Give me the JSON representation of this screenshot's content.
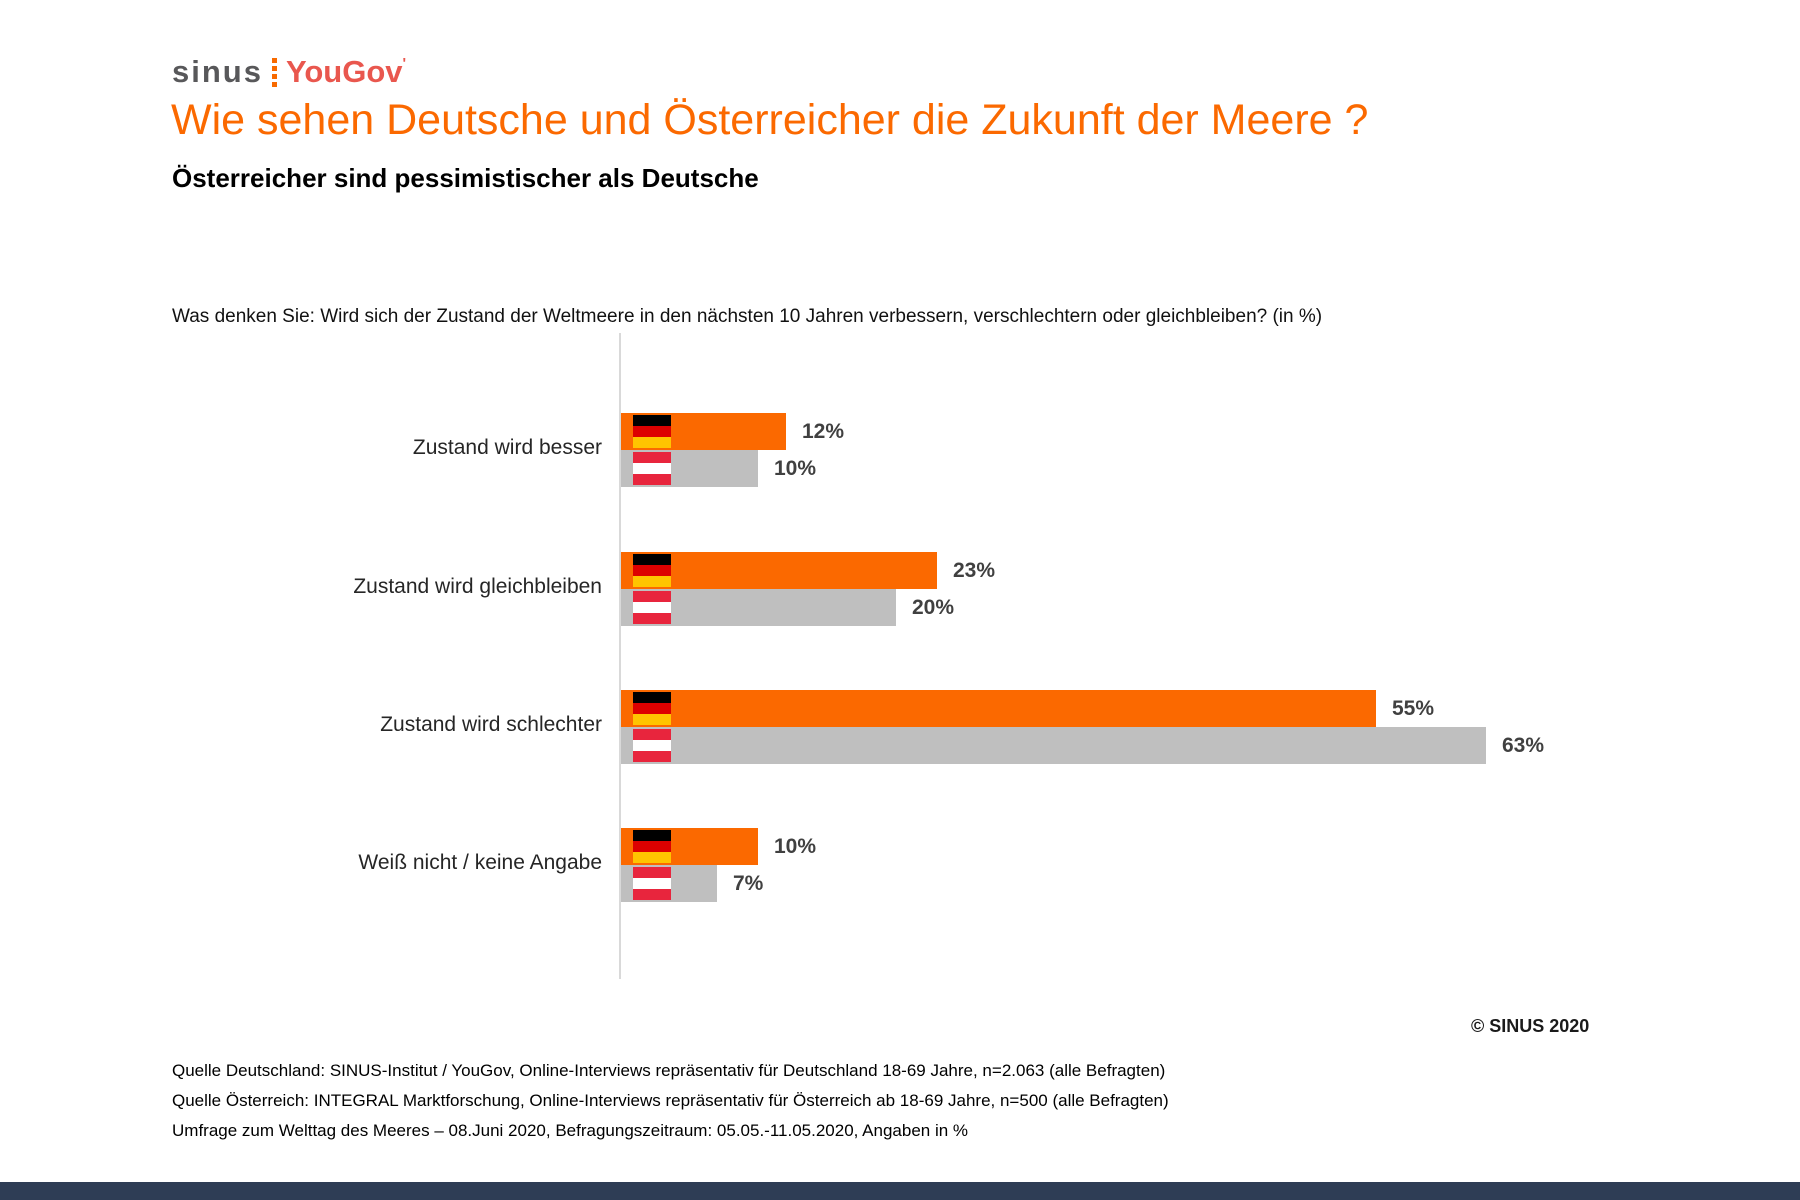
{
  "logo": {
    "sinus": "sinus",
    "yougov": "YouGov",
    "tick": "'"
  },
  "header": {
    "title": "Wie sehen Deutsche und Österreicher die Zukunft der Meere ?",
    "subtitle": "Österreicher sind pessimistischer als Deutsche"
  },
  "question": "Was denken Sie: Wird sich der Zustand der Weltmeere in den nächsten 10 Jahren verbessern, verschlechtern oder gleichbleiben? (in %)",
  "chart_data": {
    "type": "bar",
    "orientation": "horizontal",
    "title": "Wie sehen Deutsche und Österreicher die Zukunft der Meere ?",
    "categories": [
      "Zustand wird besser",
      "Zustand wird gleichbleiben",
      "Zustand wird schlechter",
      "Weiß nicht / keine Angabe"
    ],
    "series": [
      {
        "name": "Deutschland",
        "flag": "german-flag",
        "flag_colors": [
          "#000000",
          "#dd0000",
          "#ffc400"
        ],
        "color": "#fb6900",
        "values": [
          12,
          23,
          55,
          10
        ]
      },
      {
        "name": "Österreich",
        "flag": "austrian-flag",
        "flag_colors": [
          "#e8253d",
          "#ffffff",
          "#e8253d"
        ],
        "color": "#bfbfbf",
        "values": [
          10,
          20,
          63,
          7
        ]
      }
    ],
    "value_suffix": "%",
    "xlim": [
      0,
      70
    ],
    "grid": false,
    "legend_position": "in-bar-flags"
  },
  "copyright": "© SINUS 2020",
  "footer": {
    "lines": [
      "Quelle Deutschland: SINUS-Institut / YouGov, Online-Interviews repräsentativ für Deutschland 18-69 Jahre, n=2.063 (alle Befragten)",
      "Quelle Österreich: INTEGRAL Marktforschung, Online-Interviews repräsentativ für Österreich ab 18-69 Jahre, n=500 (alle Befragten)",
      "Umfrage zum Welttag des Meeres – 08.Juni 2020, Befragungszeitraum: 05.05.-11.05.2020, Angaben in %"
    ]
  },
  "colors": {
    "bar_germany": "#fb6900",
    "bar_austria": "#bfbfbf",
    "title_orange": "#fb6900",
    "value_text": "#404040",
    "axis_line": "#d9d9d9",
    "logo_gray": "#58585a",
    "logo_red": "#e9574e",
    "bottom_bar": "#2e3d55"
  }
}
